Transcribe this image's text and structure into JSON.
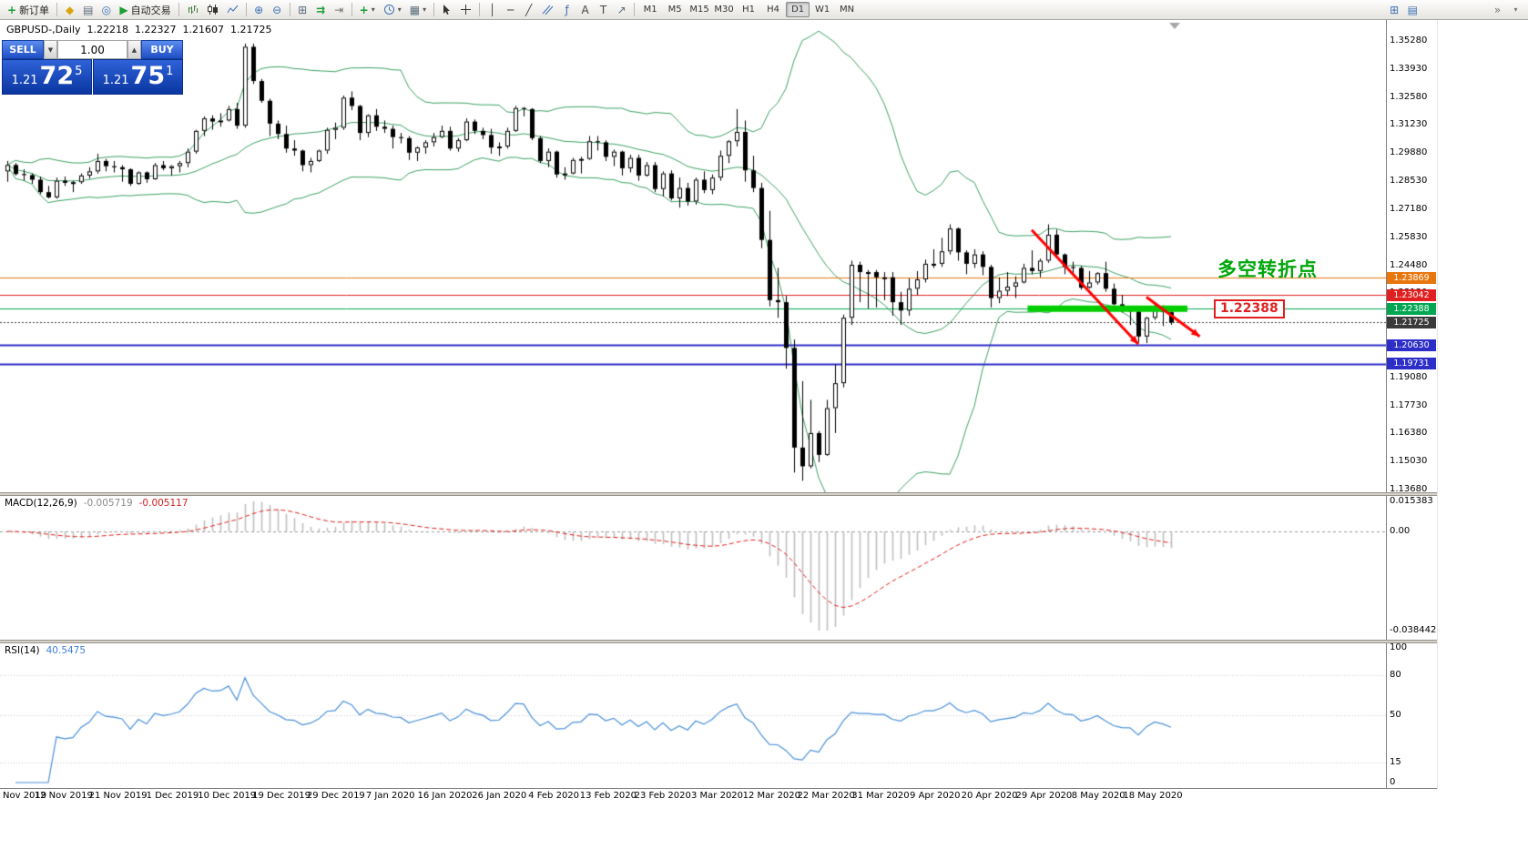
{
  "toolbar": {
    "new_order_label": "新订单",
    "auto_trading_label": "自动交易",
    "timeframes": [
      "M1",
      "M5",
      "M15",
      "M30",
      "H1",
      "H4",
      "D1",
      "W1",
      "MN"
    ],
    "active_timeframe": "D1"
  },
  "icons": {
    "new_order": "+",
    "market_watch": "◆",
    "data_window": "▤",
    "navigator": "◎",
    "auto_trading": "▶",
    "zoom_in": "⊕",
    "zoom_out": "⊖",
    "tile_windows": "⊞",
    "auto_scroll": "⇉",
    "chart_shift": "⇥",
    "indicators": "+",
    "templates": "▦",
    "caret": "▾",
    "vline": "│",
    "hline": "─",
    "trendline": "╱",
    "fibonacci": "ƒ",
    "text_tool": "A",
    "label_tool": "T",
    "arrow_tool": "↗",
    "chart_max": "⊞",
    "chart_list": "▤",
    "overflow": "»"
  },
  "header": {
    "symbol": "GBPUSD-,Daily",
    "open": "1.22218",
    "high": "1.22327",
    "low": "1.21607",
    "close": "1.21725"
  },
  "order_panel": {
    "sell_label": "SELL",
    "buy_label": "BUY",
    "volume": "1.00",
    "step_down": "▼",
    "step_up": "▲",
    "sell_price": {
      "base": "1.21",
      "pips": "72",
      "frac": "5"
    },
    "buy_price": {
      "base": "1.21",
      "pips": "75",
      "frac": "1"
    }
  },
  "chart": {
    "annotation": "多空转折点",
    "callout_label": "1.22388",
    "price_axis": [
      "1.35280",
      "1.33930",
      "1.32580",
      "1.31230",
      "1.29880",
      "1.28530",
      "1.27180",
      "1.25830",
      "1.24480",
      "1.23130",
      "1.21780",
      "1.20430",
      "1.19080",
      "1.17730",
      "1.16380",
      "1.15030",
      "1.13680"
    ],
    "dates": [
      "Nov 2019",
      "12 Nov 2019",
      "21 Nov 2019",
      "1 Dec 2019",
      "10 Dec 2019",
      "19 Dec 2019",
      "29 Dec 2019",
      "7 Jan 2020",
      "16 Jan 2020",
      "26 Jan 2020",
      "4 Feb 2020",
      "13 Feb 2020",
      "23 Feb 2020",
      "3 Mar 2020",
      "12 Mar 2020",
      "22 Mar 2020",
      "31 Mar 2020",
      "9 Apr 2020",
      "20 Apr 2020",
      "29 Apr 2020",
      "8 May 2020",
      "18 May 2020"
    ],
    "levels": [
      {
        "price": 1.23869,
        "label": "1.23869",
        "color": "#E8760C",
        "style": "solid",
        "line_width": 1
      },
      {
        "price": 1.23042,
        "label": "1.23042",
        "color": "#E02020",
        "style": "solid",
        "line_width": 1
      },
      {
        "price": 1.22388,
        "label": "1.22388",
        "color": "#00A651",
        "style": "solid",
        "line_width": 1
      },
      {
        "price": 1.21725,
        "label": "1.21725",
        "color": "#3A3A3A",
        "style": "dotted",
        "line_width": 1
      },
      {
        "price": 1.2063,
        "label": "1.20630",
        "color": "#2D2DC8",
        "style": "solid",
        "line_width": 2
      },
      {
        "price": 1.19731,
        "label": "1.19731",
        "color": "#2D2DC8",
        "style": "solid",
        "line_width": 2
      }
    ]
  },
  "macd": {
    "label": "MACD(12,26,9)",
    "value_main": "-0.005719",
    "value_signal": "-0.005117",
    "axis": [
      "0.015383",
      "0.00",
      "-0.038442"
    ]
  },
  "rsi": {
    "label": "RSI(14)",
    "value": "40.5475",
    "axis": [
      "100",
      "80",
      "50",
      "15",
      "0"
    ]
  },
  "chart_data": {
    "type": "candlestick",
    "symbol": "GBPUSD",
    "period": "Daily",
    "price_top": 1.3528,
    "price_bottom": 1.1368,
    "colors": {
      "bull": "#FFFFFF",
      "bear": "#000000",
      "outline": "#000000",
      "bands": "#3DA064",
      "macd_hist": "#C0C0C0",
      "macd_signal": "#E02020",
      "rsi_line": "#4A90D9"
    },
    "indicators": {
      "bollinger": {
        "period": 20,
        "deviation": 2
      },
      "macd": {
        "fast": 12,
        "slow": 26,
        "signal": 9
      },
      "rsi": {
        "period": 14,
        "levels": [
          80,
          50,
          15
        ]
      }
    },
    "drawings": {
      "support_bar": {
        "price": 1.22388,
        "from_index": 124.5,
        "to_index": 144,
        "color": "#00CE00",
        "thickness": 7
      },
      "arrows": [
        {
          "from_index": 125,
          "from_price": 1.2618,
          "to_index": 138,
          "to_price": 1.2068,
          "color": "#FF0000"
        },
        {
          "from_index": 139,
          "from_price": 1.2295,
          "to_index": 145.5,
          "to_price": 1.2105,
          "color": "#FF0000"
        }
      ]
    },
    "candles": [
      [
        1.29,
        1.295,
        1.285,
        1.2931
      ],
      [
        1.2931,
        1.294,
        1.288,
        1.2887
      ],
      [
        1.2887,
        1.291,
        1.2855,
        1.2882
      ],
      [
        1.2882,
        1.289,
        1.284,
        1.286
      ],
      [
        1.286,
        1.2875,
        1.279,
        1.28
      ],
      [
        1.28,
        1.283,
        1.277,
        1.2775
      ],
      [
        1.2775,
        1.287,
        1.2769,
        1.2855
      ],
      [
        1.2855,
        1.2875,
        1.283,
        1.2845
      ],
      [
        1.2845,
        1.2855,
        1.28,
        1.2848
      ],
      [
        1.2848,
        1.289,
        1.284,
        1.288
      ],
      [
        1.288,
        1.292,
        1.2865,
        1.29
      ],
      [
        1.29,
        1.2985,
        1.289,
        1.295
      ],
      [
        1.295,
        1.296,
        1.29,
        1.2925
      ],
      [
        1.2925,
        1.295,
        1.2895,
        1.292
      ],
      [
        1.292,
        1.293,
        1.285,
        1.291
      ],
      [
        1.291,
        1.2915,
        1.283,
        1.284
      ],
      [
        1.284,
        1.29,
        1.2835,
        1.2895
      ],
      [
        1.2895,
        1.29,
        1.2845,
        1.2862
      ],
      [
        1.2862,
        1.294,
        1.286,
        1.293
      ],
      [
        1.293,
        1.295,
        1.2905,
        1.2915
      ],
      [
        1.2915,
        1.293,
        1.288,
        1.2925
      ],
      [
        1.2925,
        1.295,
        1.2895,
        1.294
      ],
      [
        1.294,
        1.301,
        1.292,
        1.2995
      ],
      [
        1.2995,
        1.31,
        1.2985,
        1.3095
      ],
      [
        1.3095,
        1.3165,
        1.307,
        1.3155
      ],
      [
        1.3155,
        1.317,
        1.31,
        1.314
      ],
      [
        1.314,
        1.318,
        1.3115,
        1.3145
      ],
      [
        1.3145,
        1.3215,
        1.314,
        1.32
      ],
      [
        1.32,
        1.323,
        1.3105,
        1.312
      ],
      [
        1.312,
        1.3515,
        1.311,
        1.35
      ],
      [
        1.35,
        1.3515,
        1.332,
        1.3335
      ],
      [
        1.3335,
        1.3345,
        1.323,
        1.324
      ],
      [
        1.324,
        1.325,
        1.307,
        1.313
      ],
      [
        1.313,
        1.3145,
        1.3055,
        1.308
      ],
      [
        1.308,
        1.312,
        1.299,
        1.301
      ],
      [
        1.301,
        1.305,
        1.2975,
        1.3
      ],
      [
        1.3,
        1.3005,
        1.29,
        1.293
      ],
      [
        1.293,
        1.2965,
        1.2895,
        1.295
      ],
      [
        1.295,
        1.3005,
        1.2945,
        1.3
      ],
      [
        1.3,
        1.311,
        1.2985,
        1.31
      ],
      [
        1.31,
        1.3135,
        1.3055,
        1.311
      ],
      [
        1.311,
        1.3265,
        1.31,
        1.3255
      ],
      [
        1.3255,
        1.3285,
        1.3195,
        1.3215
      ],
      [
        1.3215,
        1.322,
        1.305,
        1.3085
      ],
      [
        1.3085,
        1.3175,
        1.3065,
        1.317
      ],
      [
        1.317,
        1.32,
        1.3095,
        1.3115
      ],
      [
        1.3115,
        1.3145,
        1.3085,
        1.3105
      ],
      [
        1.3105,
        1.312,
        1.301,
        1.3065
      ],
      [
        1.3065,
        1.3085,
        1.3035,
        1.306
      ],
      [
        1.306,
        1.307,
        1.2955,
        1.299
      ],
      [
        1.299,
        1.302,
        1.295,
        1.3015
      ],
      [
        1.3015,
        1.305,
        1.2985,
        1.304
      ],
      [
        1.304,
        1.3085,
        1.302,
        1.3065
      ],
      [
        1.3065,
        1.312,
        1.306,
        1.3095
      ],
      [
        1.3095,
        1.3115,
        1.3,
        1.301
      ],
      [
        1.301,
        1.306,
        1.2995,
        1.305
      ],
      [
        1.305,
        1.3155,
        1.3045,
        1.314
      ],
      [
        1.314,
        1.315,
        1.308,
        1.3095
      ],
      [
        1.3095,
        1.311,
        1.3055,
        1.3075
      ],
      [
        1.3075,
        1.3105,
        1.2985,
        1.3015
      ],
      [
        1.3015,
        1.304,
        1.2975,
        1.302
      ],
      [
        1.302,
        1.311,
        1.301,
        1.3095
      ],
      [
        1.3095,
        1.3215,
        1.309,
        1.3205
      ],
      [
        1.3205,
        1.321,
        1.3165,
        1.32
      ],
      [
        1.32,
        1.3205,
        1.305,
        1.306
      ],
      [
        1.306,
        1.307,
        1.294,
        1.295
      ],
      [
        1.295,
        1.301,
        1.292,
        1.2995
      ],
      [
        1.2995,
        1.3,
        1.287,
        1.2885
      ],
      [
        1.2885,
        1.292,
        1.286,
        1.289
      ],
      [
        1.289,
        1.2965,
        1.2885,
        1.2955
      ],
      [
        1.2955,
        1.297,
        1.289,
        1.296
      ],
      [
        1.296,
        1.307,
        1.2955,
        1.3045
      ],
      [
        1.3045,
        1.307,
        1.3,
        1.304
      ],
      [
        1.304,
        1.305,
        1.295,
        1.297
      ],
      [
        1.297,
        1.3005,
        1.2925,
        1.2995
      ],
      [
        1.2995,
        1.3,
        1.288,
        1.2915
      ],
      [
        1.2915,
        1.298,
        1.2895,
        1.2965
      ],
      [
        1.2965,
        1.298,
        1.2855,
        1.288
      ],
      [
        1.288,
        1.2945,
        1.2875,
        1.293
      ],
      [
        1.293,
        1.2945,
        1.28,
        1.2815
      ],
      [
        1.2815,
        1.29,
        1.278,
        1.289
      ],
      [
        1.289,
        1.2905,
        1.276,
        1.277
      ],
      [
        1.277,
        1.287,
        1.2725,
        1.282
      ],
      [
        1.282,
        1.2845,
        1.2735,
        1.2755
      ],
      [
        1.2755,
        1.287,
        1.274,
        1.286
      ],
      [
        1.286,
        1.29,
        1.2795,
        1.281
      ],
      [
        1.281,
        1.2885,
        1.279,
        1.287
      ],
      [
        1.287,
        1.3,
        1.2855,
        1.2975
      ],
      [
        1.2975,
        1.305,
        1.294,
        1.3045
      ],
      [
        1.3045,
        1.32,
        1.302,
        1.309
      ],
      [
        1.309,
        1.3145,
        1.285,
        1.2905
      ],
      [
        1.2905,
        1.2975,
        1.28,
        1.282
      ],
      [
        1.282,
        1.2845,
        1.253,
        1.257
      ],
      [
        1.257,
        1.271,
        1.225,
        1.228
      ],
      [
        1.228,
        1.2435,
        1.2195,
        1.227
      ],
      [
        1.227,
        1.23,
        1.195,
        1.205
      ],
      [
        1.205,
        1.209,
        1.145,
        1.157
      ],
      [
        1.157,
        1.189,
        1.141,
        1.148
      ],
      [
        1.148,
        1.18,
        1.147,
        1.164
      ],
      [
        1.164,
        1.165,
        1.15,
        1.1535
      ],
      [
        1.1535,
        1.18,
        1.153,
        1.176
      ],
      [
        1.176,
        1.197,
        1.164,
        1.188
      ],
      [
        1.188,
        1.221,
        1.186,
        1.2195
      ],
      [
        1.2195,
        1.247,
        1.216,
        1.245
      ],
      [
        1.245,
        1.2465,
        1.227,
        1.2415
      ],
      [
        1.2415,
        1.2425,
        1.224,
        1.2415
      ],
      [
        1.2415,
        1.2425,
        1.2245,
        1.239
      ],
      [
        1.239,
        1.2415,
        1.228,
        1.239
      ],
      [
        1.239,
        1.2415,
        1.2205,
        1.227
      ],
      [
        1.227,
        1.232,
        1.216,
        1.223
      ],
      [
        1.223,
        1.2385,
        1.2205,
        1.2335
      ],
      [
        1.2335,
        1.242,
        1.2305,
        1.238
      ],
      [
        1.238,
        1.2475,
        1.2365,
        1.2455
      ],
      [
        1.2455,
        1.2525,
        1.2435,
        1.2455
      ],
      [
        1.2455,
        1.258,
        1.244,
        1.2515
      ],
      [
        1.2515,
        1.2645,
        1.25,
        1.2625
      ],
      [
        1.2625,
        1.263,
        1.247,
        1.251
      ],
      [
        1.251,
        1.252,
        1.2405,
        1.2455
      ],
      [
        1.2455,
        1.2525,
        1.2435,
        1.25
      ],
      [
        1.25,
        1.2515,
        1.24,
        1.244
      ],
      [
        1.244,
        1.245,
        1.2245,
        1.229
      ],
      [
        1.229,
        1.239,
        1.2265,
        1.2325
      ],
      [
        1.2325,
        1.2415,
        1.23,
        1.2345
      ],
      [
        1.2345,
        1.2395,
        1.229,
        1.2365
      ],
      [
        1.2365,
        1.2455,
        1.236,
        1.2435
      ],
      [
        1.2435,
        1.252,
        1.2405,
        1.242
      ],
      [
        1.242,
        1.248,
        1.239,
        1.247
      ],
      [
        1.247,
        1.2645,
        1.246,
        1.2595
      ],
      [
        1.2595,
        1.262,
        1.2485,
        1.25
      ],
      [
        1.25,
        1.2505,
        1.2405,
        1.244
      ],
      [
        1.244,
        1.2465,
        1.241,
        1.2435
      ],
      [
        1.2435,
        1.2445,
        1.233,
        1.234
      ],
      [
        1.234,
        1.242,
        1.2335,
        1.2365
      ],
      [
        1.2365,
        1.2415,
        1.2355,
        1.241
      ],
      [
        1.241,
        1.2465,
        1.232,
        1.2335
      ],
      [
        1.2335,
        1.236,
        1.2255,
        1.226
      ],
      [
        1.226,
        1.2305,
        1.222,
        1.223
      ],
      [
        1.223,
        1.225,
        1.216,
        1.2225
      ],
      [
        1.2225,
        1.223,
        1.2075,
        1.2105
      ],
      [
        1.2105,
        1.22,
        1.2073,
        1.2195
      ],
      [
        1.2195,
        1.2265,
        1.2185,
        1.225
      ],
      [
        1.225,
        1.2255,
        1.2155,
        1.2222
      ],
      [
        1.22218,
        1.22327,
        1.21607,
        1.21725
      ]
    ]
  }
}
